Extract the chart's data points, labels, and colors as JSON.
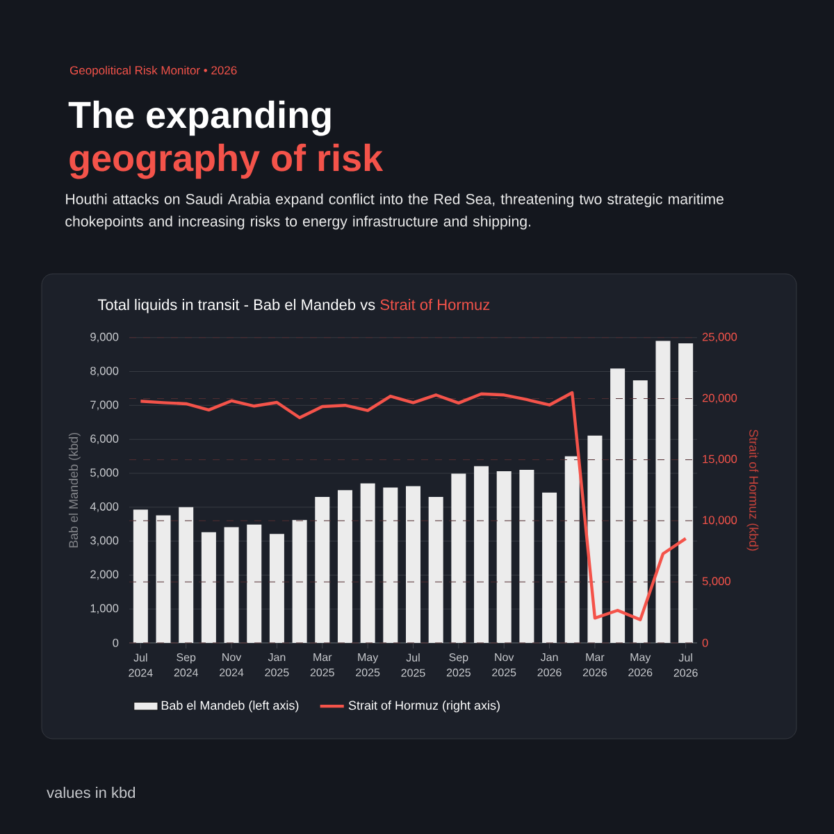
{
  "chart_data": {
    "type": "bar",
    "title": "The expanding",
    "subtitle": "geography of risk",
    "annotations": [
      "Geopolitical Risk Monitor • 2026",
      "Houthi attacks on Saudi Arabia expand conflict into the Red Sea, threatening two strategic maritime chokepoints and increasing risks to energy infrastructure and shipping.",
      "Total liquids in transit - Bab el Mandeb vs",
      "Strait of Hormuz",
      "values in kbd"
    ],
    "ylabel": "Bab el Mandeb (kbd)",
    "y2label": "Strait of Hormuz (kbd)",
    "categories": [
      "Jul 2024",
      null,
      "Sep 2024",
      null,
      "Nov 2024",
      null,
      "Jan 2025",
      null,
      "Mar 2025",
      null,
      "May 2025",
      null,
      "Jul 2025",
      null,
      "Sep 2025",
      null,
      "Nov 2025",
      null,
      "Jan 2026",
      null,
      "Mar 2026",
      null,
      "May 2026",
      null,
      "Jul 2026"
    ],
    "series": [
      {
        "name": "Bab el Mandeb (left axis)",
        "color": "#ececec",
        "values": [
          3930,
          3760,
          4000,
          3260,
          3410,
          3490,
          3210,
          3620,
          4300,
          4500,
          4700,
          4580,
          4620,
          4300,
          4990,
          5210,
          5060,
          5100,
          4430,
          5500,
          6110,
          8090,
          7740,
          8900,
          8830
        ]
      },
      {
        "name": "Strait of Hormuz (right axis)",
        "type": "line",
        "axis": "y2",
        "color": "#f4534a",
        "values": [
          19790,
          19670,
          19580,
          19070,
          19820,
          19390,
          19690,
          18440,
          19350,
          19450,
          19030,
          20200,
          19670,
          20300,
          19640,
          20390,
          20300,
          19920,
          19480,
          20490,
          2030,
          2660,
          1900,
          7300,
          8540
        ]
      }
    ],
    "ylim": [
      0,
      9000
    ],
    "yticks": [
      {
        "value": 0,
        "label": "0"
      },
      {
        "value": 1000,
        "label": "1,000"
      },
      {
        "value": 2000,
        "label": "2,000"
      },
      {
        "value": 3000,
        "label": "3,000"
      },
      {
        "value": 4000,
        "label": "4,000"
      },
      {
        "value": 5000,
        "label": "5,000"
      },
      {
        "value": 6000,
        "label": "6,000"
      },
      {
        "value": 7000,
        "label": "7,000"
      },
      {
        "value": 8000,
        "label": "8,000"
      },
      {
        "value": 9000,
        "label": "9,000"
      }
    ],
    "y2lim": [
      0,
      25000
    ],
    "y2ticks": [
      {
        "value": 0,
        "label": "0"
      },
      {
        "value": 5000,
        "label": "5,000"
      },
      {
        "value": 10000,
        "label": "10,000"
      },
      {
        "value": 15000,
        "label": "15,000"
      },
      {
        "value": 20000,
        "label": "20,000"
      },
      {
        "value": 25000,
        "label": "25,000"
      }
    ],
    "grid": true,
    "legend": "bottom"
  }
}
